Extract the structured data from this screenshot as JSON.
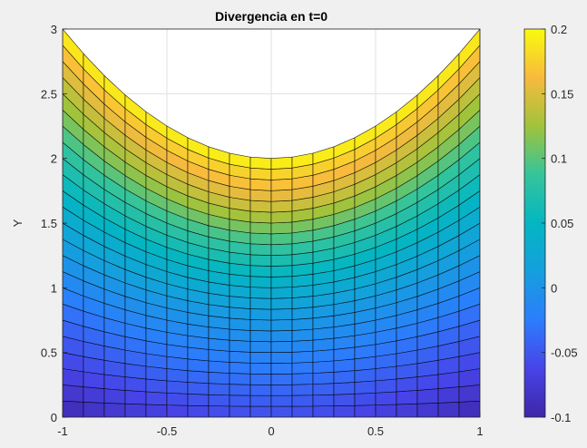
{
  "chart_data": {
    "type": "heatmap",
    "title": "Divergencia en t=0",
    "xlabel": "",
    "ylabel": "Y",
    "xlim": [
      -1,
      1
    ],
    "ylim": [
      0,
      3
    ],
    "xticks": [
      -1,
      -0.5,
      0,
      0.5,
      1
    ],
    "yticks": [
      0,
      0.5,
      1,
      1.5,
      2,
      2.5,
      3
    ],
    "xtick_labels": [
      "-1",
      "-0.5",
      "0",
      "0.5",
      "1"
    ],
    "ytick_labels": [
      "0",
      "0.5",
      "1",
      "1.5",
      "2",
      "2.5",
      "3"
    ],
    "grid": true,
    "colormap": "parula",
    "colorbar": {
      "position": "right",
      "clim": [
        -0.1,
        0.2
      ],
      "ticks": [
        -0.1,
        -0.05,
        0,
        0.05,
        0.1,
        0.15,
        0.2
      ],
      "tick_labels": [
        "-0.1",
        "-0.05",
        "0",
        "0.05",
        "0.1",
        "0.15",
        "0.2"
      ]
    },
    "domain": {
      "x": [
        -1,
        1
      ],
      "y_bottom": 0,
      "y_top": "2 + x^2",
      "mesh_cols": 20,
      "mesh_rows": 24
    },
    "color_profile": {
      "description": "divergence value at lower boundary vs upper boundary as function of x",
      "y_norm": [
        0,
        0.1,
        0.25,
        0.4,
        0.55,
        0.7,
        0.8,
        0.87,
        0.95,
        1.0
      ],
      "value_at_x0": [
        -0.055,
        -0.04,
        -0.015,
        0.01,
        0.05,
        0.1,
        0.14,
        0.16,
        0.18,
        0.2
      ],
      "value_at_x1": [
        -0.095,
        -0.07,
        -0.04,
        0.0,
        0.04,
        0.085,
        0.12,
        0.14,
        0.17,
        0.2
      ]
    },
    "colors": {
      "figure_bg": "#f0f0f0",
      "axes_bg": "#ffffff",
      "grid": "#e1e1e1",
      "axis": "#262626",
      "mesh_edge": "#000000"
    }
  }
}
